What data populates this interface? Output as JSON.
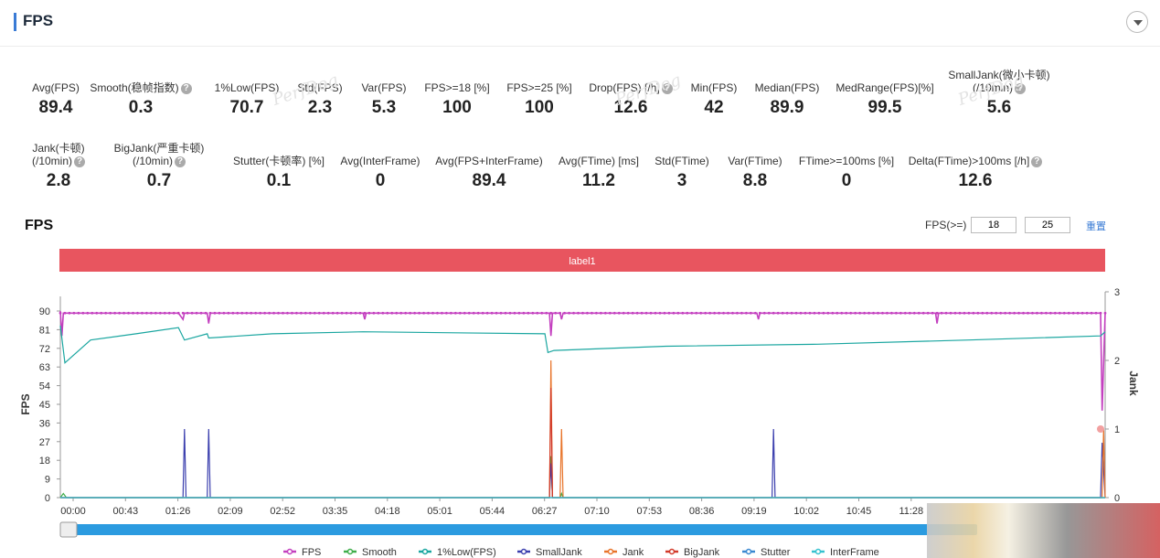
{
  "header": {
    "title": "FPS"
  },
  "metrics_row1": [
    {
      "label": "Avg(FPS)",
      "value": "89.4",
      "help": false
    },
    {
      "label": "Smooth(稳帧指数)",
      "value": "0.3",
      "help": true
    },
    {
      "label": "1%Low(FPS)",
      "value": "70.7",
      "help": false
    },
    {
      "label": "Std(FPS)",
      "value": "2.3",
      "help": false
    },
    {
      "label": "Var(FPS)",
      "value": "5.3",
      "help": false
    },
    {
      "label": "FPS>=18 [%]",
      "value": "100",
      "help": false
    },
    {
      "label": "FPS>=25 [%]",
      "value": "100",
      "help": false
    },
    {
      "label": "Drop(FPS) [/h]",
      "value": "12.6",
      "help": true
    },
    {
      "label": "Min(FPS)",
      "value": "42",
      "help": false
    },
    {
      "label": "Median(FPS)",
      "value": "89.9",
      "help": false
    },
    {
      "label": "MedRange(FPS)[%]",
      "value": "99.5",
      "help": false
    },
    {
      "label": "SmallJank(微小卡顿)",
      "label2": "(/10min)",
      "value": "5.6",
      "help": true
    }
  ],
  "metrics_row2": [
    {
      "label": "Jank(卡顿)",
      "label2": "(/10min)",
      "value": "2.8",
      "help": true
    },
    {
      "label": "BigJank(严重卡顿)",
      "label2": "(/10min)",
      "value": "0.7",
      "help": true
    },
    {
      "label": "Stutter(卡顿率) [%]",
      "value": "0.1",
      "help": false
    },
    {
      "label": "Avg(InterFrame)",
      "value": "0",
      "help": false
    },
    {
      "label": "Avg(FPS+InterFrame)",
      "value": "89.4",
      "help": false
    },
    {
      "label": "Avg(FTime) [ms]",
      "value": "11.2",
      "help": false
    },
    {
      "label": "Std(FTime)",
      "value": "3",
      "help": false
    },
    {
      "label": "Var(FTime)",
      "value": "8.8",
      "help": false
    },
    {
      "label": "FTime>=100ms [%]",
      "value": "0",
      "help": false
    },
    {
      "label": "Delta(FTime)>100ms [/h]",
      "value": "12.6",
      "help": true
    }
  ],
  "chart_section": {
    "title": "FPS",
    "threshold_label": "FPS(>=)",
    "threshold1": "18",
    "threshold2": "25",
    "reset_label": "重置",
    "band_label": "label1",
    "watermark": "PerfDog"
  },
  "colors": {
    "accent": "#3a7bd5",
    "band": "#e8555f",
    "fps": "#c33fbf",
    "smooth": "#3fae4a",
    "low1": "#1aa6a0",
    "smalljank": "#3b3fae",
    "jank": "#e8742a",
    "bigjank": "#d23a2a",
    "stutter": "#3a88d0",
    "interframe": "#36c2cf",
    "slider": "#2b9be0"
  },
  "chart_data": {
    "type": "line",
    "xlabel": "",
    "ylabel": "FPS",
    "y2label": "Jank",
    "ylim": [
      0,
      90
    ],
    "y2lim": [
      0,
      3
    ],
    "yticks": [
      0,
      9,
      18,
      27,
      36,
      45,
      54,
      63,
      72,
      81,
      90
    ],
    "y2ticks": [
      0,
      1,
      2,
      3
    ],
    "xlim_sec": [
      0,
      690
    ],
    "xtick_labels": [
      "00:00",
      "00:43",
      "01:26",
      "02:09",
      "02:52",
      "03:35",
      "04:18",
      "05:01",
      "05:44",
      "06:27",
      "07:10",
      "07:53",
      "08:36",
      "09:19",
      "10:02",
      "10:45",
      "11:28"
    ],
    "grid": false,
    "legend_position": "bottom",
    "series": [
      {
        "name": "FPS",
        "axis": "left",
        "points": [
          [
            0,
            90
          ],
          [
            1,
            78
          ],
          [
            2,
            89
          ],
          [
            30,
            89
          ],
          [
            78,
            89
          ],
          [
            81,
            86
          ],
          [
            82,
            89
          ],
          [
            97,
            89
          ],
          [
            98,
            84
          ],
          [
            99,
            89
          ],
          [
            200,
            89
          ],
          [
            201,
            86
          ],
          [
            202,
            89
          ],
          [
            323,
            89
          ],
          [
            324,
            78
          ],
          [
            325,
            89
          ],
          [
            330,
            89
          ],
          [
            331,
            86
          ],
          [
            332,
            89
          ],
          [
            460,
            89
          ],
          [
            461,
            86
          ],
          [
            462,
            89
          ],
          [
            578,
            89
          ],
          [
            579,
            84
          ],
          [
            580,
            89
          ],
          [
            687,
            89
          ],
          [
            688,
            42
          ],
          [
            690,
            89
          ]
        ]
      },
      {
        "name": "Smooth",
        "axis": "left",
        "points": [
          [
            0,
            0
          ],
          [
            2,
            2
          ],
          [
            4,
            0
          ],
          [
            323,
            0
          ],
          [
            324,
            20
          ],
          [
            325,
            0
          ],
          [
            330,
            0
          ],
          [
            331,
            2
          ],
          [
            332,
            0
          ],
          [
            690,
            0
          ]
        ]
      },
      {
        "name": "1%Low(FPS)",
        "axis": "left",
        "points": [
          [
            0,
            83
          ],
          [
            3,
            65
          ],
          [
            20,
            76
          ],
          [
            50,
            79
          ],
          [
            78,
            82
          ],
          [
            82,
            76
          ],
          [
            97,
            79
          ],
          [
            98,
            77
          ],
          [
            140,
            79
          ],
          [
            200,
            80
          ],
          [
            320,
            79
          ],
          [
            322,
            70
          ],
          [
            326,
            71
          ],
          [
            400,
            73
          ],
          [
            500,
            74
          ],
          [
            600,
            76
          ],
          [
            687,
            78
          ],
          [
            690,
            80
          ]
        ]
      },
      {
        "name": "SmallJank",
        "axis": "right",
        "points": [
          [
            0,
            0
          ],
          [
            81,
            0
          ],
          [
            82,
            1
          ],
          [
            83,
            0
          ],
          [
            97,
            0
          ],
          [
            98,
            1
          ],
          [
            99,
            0
          ],
          [
            323,
            0
          ],
          [
            324,
            0.5
          ],
          [
            325,
            0
          ],
          [
            470,
            0
          ],
          [
            471,
            1
          ],
          [
            472,
            0
          ],
          [
            687,
            0
          ],
          [
            688,
            0.8
          ],
          [
            690,
            0
          ]
        ]
      },
      {
        "name": "Jank",
        "axis": "right",
        "points": [
          [
            0,
            0
          ],
          [
            323,
            0
          ],
          [
            324,
            2.0
          ],
          [
            325,
            0
          ],
          [
            330,
            0
          ],
          [
            331,
            1
          ],
          [
            332,
            0
          ],
          [
            688,
            0
          ],
          [
            689,
            1.0
          ],
          [
            690,
            0
          ]
        ]
      },
      {
        "name": "BigJank",
        "axis": "right",
        "points": [
          [
            0,
            0
          ],
          [
            323,
            0
          ],
          [
            324,
            1.6
          ],
          [
            325,
            0
          ],
          [
            689,
            0
          ],
          [
            690,
            0
          ]
        ]
      },
      {
        "name": "Stutter",
        "axis": "right",
        "points": [
          [
            0,
            0
          ],
          [
            690,
            0
          ]
        ]
      },
      {
        "name": "InterFrame",
        "axis": "left",
        "points": [
          [
            0,
            0
          ],
          [
            690,
            0
          ]
        ]
      }
    ]
  }
}
